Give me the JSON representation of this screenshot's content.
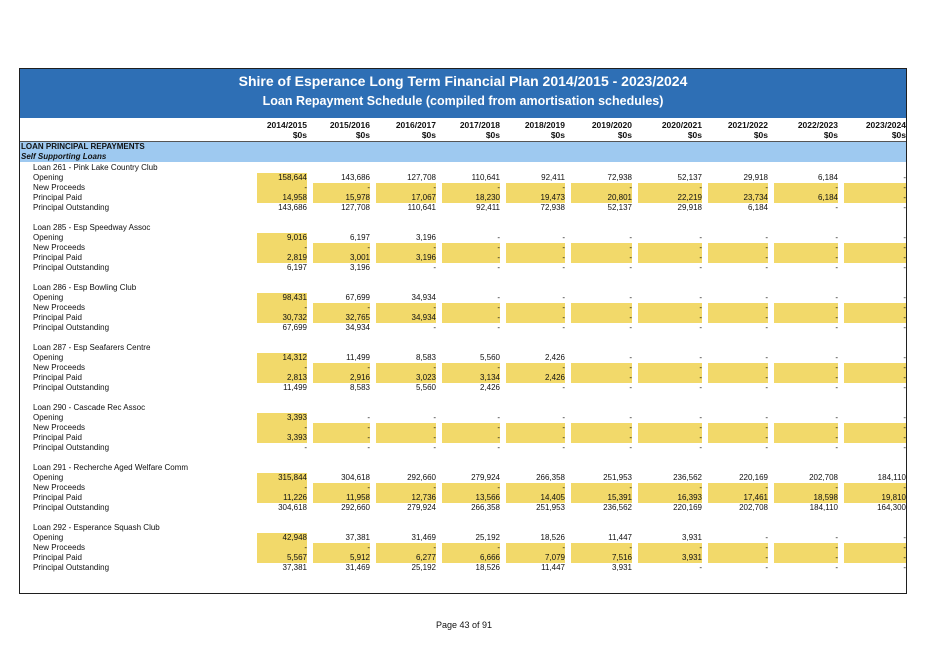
{
  "title": "Shire of Esperance Long Term Financial Plan 2014/2015 - 2023/2024",
  "subtitle": "Loan Repayment Schedule (compiled from amortisation schedules)",
  "years": [
    "2014/2015",
    "2015/2016",
    "2016/2017",
    "2017/2018",
    "2018/2019",
    "2019/2020",
    "2020/2021",
    "2021/2022",
    "2022/2023",
    "2023/2024"
  ],
  "unit": "$0s",
  "section_title": "LOAN PRINCIPAL REPAYMENTS",
  "subsection_title": "Self Supporting Loans",
  "row_labels": [
    "Opening",
    "New Proceeds",
    "Principal Paid",
    "Principal Outstanding"
  ],
  "colors": {
    "banner": "#2e6fb5",
    "section": "#9ec9f0",
    "input": "#f2d96a"
  },
  "loans": [
    {
      "name": "Loan 261 - Pink Lake Country Club",
      "rows": [
        [
          "158,644",
          "143,686",
          "127,708",
          "110,641",
          "92,411",
          "72,938",
          "52,137",
          "29,918",
          "6,184",
          "-"
        ],
        [
          "-",
          "-",
          "-",
          "-",
          "-",
          "-",
          "-",
          "-",
          "-",
          "-"
        ],
        [
          "14,958",
          "15,978",
          "17,067",
          "18,230",
          "19,473",
          "20,801",
          "22,219",
          "23,734",
          "6,184",
          "-"
        ],
        [
          "143,686",
          "127,708",
          "110,641",
          "92,411",
          "72,938",
          "52,137",
          "29,918",
          "6,184",
          "-",
          "-"
        ]
      ]
    },
    {
      "name": "Loan 285 - Esp Speedway Assoc",
      "rows": [
        [
          "9,016",
          "6,197",
          "3,196",
          "-",
          "-",
          "-",
          "-",
          "-",
          "-",
          "-"
        ],
        [
          "-",
          "-",
          "-",
          "-",
          "-",
          "-",
          "-",
          "-",
          "-",
          "-"
        ],
        [
          "2,819",
          "3,001",
          "3,196",
          "-",
          "-",
          "-",
          "-",
          "-",
          "-",
          "-"
        ],
        [
          "6,197",
          "3,196",
          "-",
          "-",
          "-",
          "-",
          "-",
          "-",
          "-",
          "-"
        ]
      ]
    },
    {
      "name": "Loan 286 - Esp Bowling Club",
      "rows": [
        [
          "98,431",
          "67,699",
          "34,934",
          "-",
          "-",
          "-",
          "-",
          "-",
          "-",
          "-"
        ],
        [
          "-",
          "-",
          "-",
          "-",
          "-",
          "-",
          "-",
          "-",
          "-",
          "-"
        ],
        [
          "30,732",
          "32,765",
          "34,934",
          "-",
          "-",
          "-",
          "-",
          "-",
          "-",
          "-"
        ],
        [
          "67,699",
          "34,934",
          "-",
          "-",
          "-",
          "-",
          "-",
          "-",
          "-",
          "-"
        ]
      ]
    },
    {
      "name": "Loan 287 - Esp Seafarers Centre",
      "rows": [
        [
          "14,312",
          "11,499",
          "8,583",
          "5,560",
          "2,426",
          "-",
          "-",
          "-",
          "-",
          "-"
        ],
        [
          "-",
          "-",
          "-",
          "-",
          "-",
          "-",
          "-",
          "-",
          "-",
          "-"
        ],
        [
          "2,813",
          "2,916",
          "3,023",
          "3,134",
          "2,426",
          "-",
          "-",
          "-",
          "-",
          "-"
        ],
        [
          "11,499",
          "8,583",
          "5,560",
          "2,426",
          "-",
          "-",
          "-",
          "-",
          "-",
          "-"
        ]
      ]
    },
    {
      "name": "Loan 290 - Cascade Rec Assoc",
      "rows": [
        [
          "3,393",
          "-",
          "-",
          "-",
          "-",
          "-",
          "-",
          "-",
          "-",
          "-"
        ],
        [
          "-",
          "-",
          "-",
          "-",
          "-",
          "-",
          "-",
          "-",
          "-",
          "-"
        ],
        [
          "3,393",
          "-",
          "-",
          "-",
          "-",
          "-",
          "-",
          "-",
          "-",
          "-"
        ],
        [
          "-",
          "-",
          "-",
          "-",
          "-",
          "-",
          "-",
          "-",
          "-",
          "-"
        ]
      ]
    },
    {
      "name": "Loan 291 - Recherche Aged Welfare Comm",
      "rows": [
        [
          "315,844",
          "304,618",
          "292,660",
          "279,924",
          "266,358",
          "251,953",
          "236,562",
          "220,169",
          "202,708",
          "184,110"
        ],
        [
          "-",
          "-",
          "-",
          "-",
          "-",
          "-",
          "-",
          "-",
          "-",
          "-"
        ],
        [
          "11,226",
          "11,958",
          "12,736",
          "13,566",
          "14,405",
          "15,391",
          "16,393",
          "17,461",
          "18,598",
          "19,810"
        ],
        [
          "304,618",
          "292,660",
          "279,924",
          "266,358",
          "251,953",
          "236,562",
          "220,169",
          "202,708",
          "184,110",
          "164,300"
        ]
      ]
    },
    {
      "name": "Loan 292 - Esperance Squash Club",
      "rows": [
        [
          "42,948",
          "37,381",
          "31,469",
          "25,192",
          "18,526",
          "11,447",
          "3,931",
          "-",
          "-",
          "-"
        ],
        [
          "-",
          "-",
          "-",
          "-",
          "-",
          "-",
          "-",
          "-",
          "-",
          "-"
        ],
        [
          "5,567",
          "5,912",
          "6,277",
          "6,666",
          "7,079",
          "7,516",
          "3,931",
          "-",
          "-",
          "-"
        ],
        [
          "37,381",
          "31,469",
          "25,192",
          "18,526",
          "11,447",
          "3,931",
          "-",
          "-",
          "-",
          "-"
        ]
      ]
    }
  ],
  "footer": "Page 43 of 91"
}
